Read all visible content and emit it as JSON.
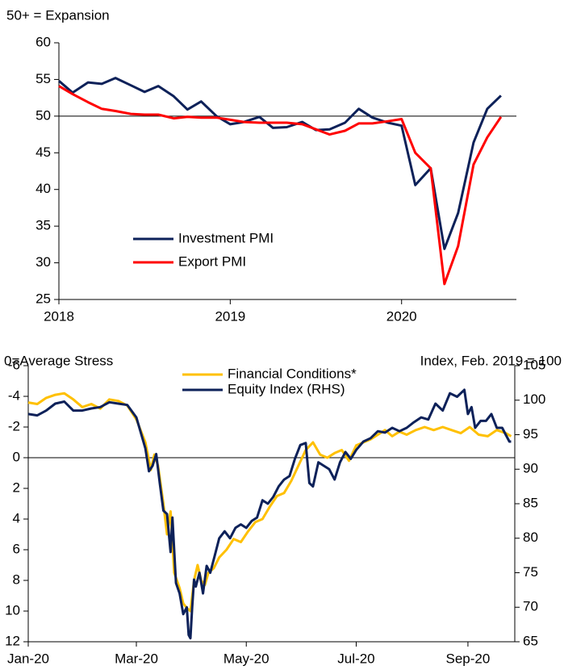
{
  "chart_data": [
    {
      "type": "line",
      "annotation": "50+ = Expansion",
      "x": [
        2018,
        2018.08,
        2018.17,
        2018.25,
        2018.33,
        2018.42,
        2018.5,
        2018.58,
        2018.67,
        2018.75,
        2018.83,
        2018.92,
        2019,
        2019.08,
        2019.17,
        2019.25,
        2019.33,
        2019.42,
        2019.5,
        2019.58,
        2019.67,
        2019.75,
        2019.83,
        2019.92,
        2020,
        2020.08,
        2020.17,
        2020.25,
        2020.33,
        2020.42,
        2020.5,
        2020.58
      ],
      "series": [
        {
          "name": "Investment PMI",
          "color": "#0d2159",
          "values": [
            54.8,
            53.2,
            54.6,
            54.4,
            55.2,
            54.2,
            53.3,
            54.1,
            52.7,
            50.9,
            52.0,
            50.0,
            48.9,
            49.2,
            49.9,
            48.4,
            48.5,
            49.2,
            48.1,
            48.2,
            49.1,
            51.0,
            49.8,
            49.1,
            48.7,
            40.6,
            42.9,
            31.9,
            36.8,
            46.4,
            51.0,
            52.8
          ]
        },
        {
          "name": "Export PMI",
          "color": "#ff0000",
          "values": [
            54.1,
            53.0,
            51.9,
            51.0,
            50.7,
            50.3,
            50.2,
            50.2,
            49.7,
            49.9,
            49.8,
            49.8,
            49.5,
            49.2,
            49.1,
            49.1,
            49.1,
            48.9,
            48.2,
            47.5,
            48.0,
            49.0,
            49.0,
            49.3,
            49.6,
            45.0,
            42.9,
            27.1,
            32.3,
            43.4,
            47.1,
            49.9
          ]
        }
      ],
      "xlim": [
        2018,
        2020.67
      ],
      "xticks": [
        2018,
        2019,
        2020
      ],
      "ylim": [
        25,
        60
      ],
      "yticks": [
        25,
        30,
        35,
        40,
        45,
        50,
        55,
        60
      ],
      "hline": 50,
      "legend": "lower-left",
      "grid": false
    },
    {
      "type": "line",
      "ylabel": "0=Average Stress",
      "y2label": "Index, Feb. 2019 = 100",
      "series": [
        {
          "name": "Financial Conditions*",
          "color": "#ffc000",
          "x": [
            0,
            5,
            10,
            15,
            20,
            25,
            30,
            35,
            40,
            45,
            50,
            55,
            60,
            65,
            68,
            70,
            72,
            75,
            77,
            79,
            81,
            84,
            86,
            88,
            90,
            92,
            94,
            96,
            98,
            100,
            103,
            106,
            110,
            114,
            118,
            122,
            126,
            130,
            134,
            138,
            142,
            146,
            150,
            154,
            158,
            162,
            166,
            170,
            174,
            178,
            182,
            186,
            190,
            194,
            198,
            202,
            206,
            210,
            215,
            220,
            225,
            230,
            235,
            240,
            245,
            250,
            255,
            260,
            265,
            268
          ],
          "values": [
            -3.6,
            -3.5,
            -3.9,
            -4.1,
            -4.2,
            -3.8,
            -3.3,
            -3.5,
            -3.2,
            -3.8,
            -3.7,
            -3.4,
            -2.5,
            -1.0,
            0.8,
            -0.2,
            0.5,
            3.0,
            5.0,
            3.5,
            7.5,
            8.5,
            9.5,
            9.8,
            10.0,
            8.0,
            7.0,
            8.0,
            8.3,
            7.5,
            7.2,
            6.5,
            6.0,
            5.3,
            5.5,
            4.8,
            4.2,
            4.0,
            3.2,
            2.5,
            2.3,
            1.5,
            0.5,
            -0.5,
            -1.0,
            -0.2,
            0.0,
            -0.3,
            -0.5,
            0.2,
            -0.8,
            -1.0,
            -1.2,
            -1.5,
            -1.8,
            -1.4,
            -1.7,
            -1.5,
            -1.8,
            -2.0,
            -1.8,
            -2.0,
            -1.8,
            -1.6,
            -2.0,
            -1.5,
            -1.4,
            -1.8,
            -1.6,
            -1.4
          ]
        },
        {
          "name": "Equity Index (RHS)",
          "color": "#0d2159",
          "axis": "y2",
          "x": [
            0,
            5,
            10,
            15,
            20,
            25,
            30,
            35,
            40,
            45,
            50,
            55,
            60,
            65,
            67,
            69,
            71,
            73,
            75,
            77,
            79,
            80,
            82,
            84,
            86,
            88,
            89,
            90,
            91,
            92,
            93,
            95,
            97,
            99,
            101,
            104,
            106,
            109,
            112,
            115,
            118,
            121,
            124,
            127,
            130,
            133,
            136,
            139,
            142,
            145,
            148,
            151,
            154,
            156,
            158,
            161,
            164,
            167,
            170,
            173,
            176,
            179,
            182,
            186,
            190,
            194,
            198,
            202,
            206,
            210,
            214,
            218,
            222,
            226,
            230,
            234,
            238,
            242,
            244,
            246,
            248,
            251,
            254,
            257,
            260,
            263,
            265,
            267,
            268
          ],
          "values": [
            98,
            97.8,
            98.5,
            99.5,
            99.8,
            98.5,
            98.5,
            98.8,
            99,
            99.7,
            99.5,
            99.3,
            97.5,
            93.0,
            89.7,
            90.5,
            92.2,
            88,
            84,
            83.5,
            78,
            83,
            73.5,
            72,
            69,
            70,
            66,
            65.5,
            70,
            74,
            73,
            75,
            72,
            76,
            75,
            78,
            80,
            81,
            80,
            81.5,
            82,
            81.5,
            82.5,
            83,
            85.5,
            85,
            86,
            87.5,
            88.5,
            89,
            91.5,
            93.5,
            93.8,
            88,
            87.5,
            91,
            90.5,
            90,
            88.5,
            91,
            92.5,
            91.5,
            92.8,
            94,
            94.5,
            95.5,
            95.3,
            96,
            95.5,
            96,
            96.8,
            97.5,
            97.2,
            99.5,
            98.5,
            101,
            100.5,
            101.5,
            98,
            99,
            96,
            97,
            97,
            98,
            96,
            96,
            95,
            94,
            94
          ]
        }
      ],
      "xlim": [
        0,
        270
      ],
      "xticks": [
        {
          "value": 0,
          "label": "Jan-20"
        },
        {
          "value": 60,
          "label": "Mar-20"
        },
        {
          "value": 121,
          "label": "May-20"
        },
        {
          "value": 182,
          "label": "Jul-20"
        },
        {
          "value": 244,
          "label": "Sep-20"
        }
      ],
      "ylim": [
        -6,
        12
      ],
      "yticks": [
        -6,
        -4,
        -2,
        0,
        2,
        4,
        6,
        8,
        10,
        12
      ],
      "inverted": true,
      "y2lim": [
        65,
        105
      ],
      "y2ticks": [
        65,
        70,
        75,
        80,
        85,
        90,
        95,
        100,
        105
      ],
      "hline": 0,
      "legend": "upper-center",
      "grid": false
    }
  ]
}
